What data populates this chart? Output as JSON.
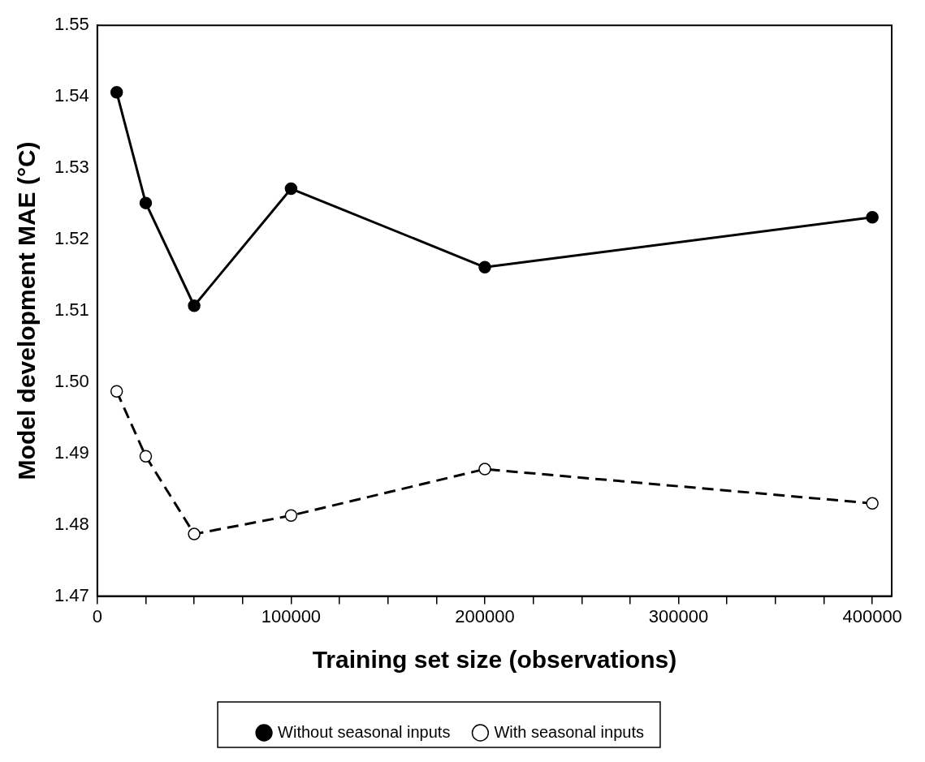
{
  "chart_data": {
    "type": "line",
    "xlabel": "Training set size (observations)",
    "ylabel": "Model development MAE (°C)",
    "x": [
      10000,
      25000,
      50000,
      100000,
      200000,
      400000
    ],
    "series": [
      {
        "name": "Without seasonal inputs",
        "color": "#000000",
        "line_style": "solid",
        "values": [
          1.5406,
          1.5251,
          1.5107,
          1.5271,
          1.5161,
          1.5231
        ]
      },
      {
        "name": "With seasonal inputs",
        "color": "#000000",
        "line_style": "dashed",
        "values": [
          1.4987,
          1.4896,
          1.4787,
          1.4813,
          1.4878,
          1.483
        ]
      }
    ],
    "xlim": [
      0,
      410000
    ],
    "xticks": [
      0,
      {
        "value": 25000,
        "label": null
      },
      {
        "value": 50000,
        "label": null
      },
      {
        "value": 75000,
        "label": null
      },
      100000,
      {
        "value": 125000,
        "label": null
      },
      {
        "value": 150000,
        "label": null
      },
      {
        "value": 175000,
        "label": null
      },
      200000,
      {
        "value": 225000,
        "label": null
      },
      {
        "value": 250000,
        "label": null
      },
      {
        "value": 275000,
        "label": null
      },
      300000,
      {
        "value": 325000,
        "label": null
      },
      {
        "value": 350000,
        "label": null
      },
      {
        "value": 375000,
        "label": null
      },
      400000
    ],
    "ylim": [
      1.47,
      1.55
    ],
    "yticks": [
      1.47,
      1.48,
      1.49,
      {
        "value": 1.5,
        "label": "1.50"
      },
      1.51,
      1.52,
      1.53,
      1.54,
      1.55
    ],
    "grid": false,
    "legend": "bottom",
    "marker": "circle"
  }
}
